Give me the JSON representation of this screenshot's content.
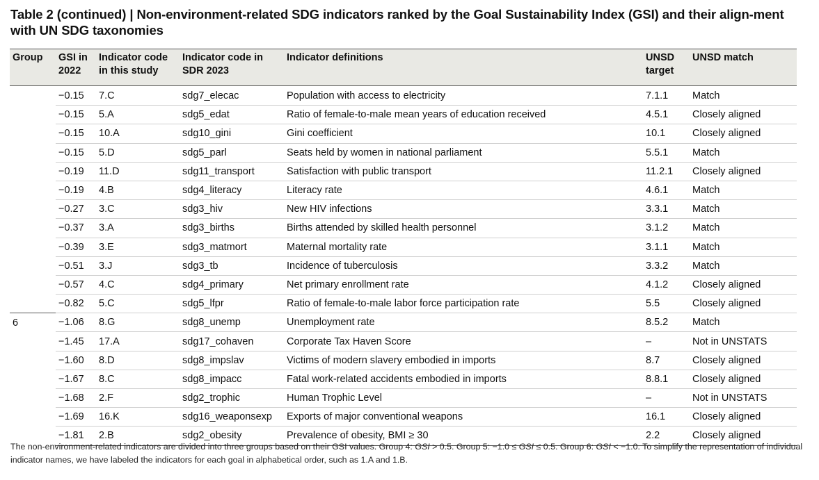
{
  "title": "Table 2 (continued) | Non-environment-related SDG indicators ranked by the Goal Sustainability Index (GSI) and their align-ment with UN SDG taxonomies",
  "headers": {
    "group": "Group",
    "gsi": "GSI in 2022",
    "code_study": "Indicator code in this study",
    "code_sdr": "Indicator code in SDR 2023",
    "definition": "Indicator definitions",
    "unsd_target": "UNSD target",
    "unsd_match": "UNSD match"
  },
  "rows": [
    {
      "group": "",
      "gsi": "−0.15",
      "code": "7.C",
      "sdr": "sdg7_elecac",
      "definition": "Population with access to electricity",
      "target": "7.1.1",
      "match": "Match"
    },
    {
      "group": "",
      "gsi": "−0.15",
      "code": "5.A",
      "sdr": "sdg5_edat",
      "definition": "Ratio of female-to-male mean years of education received",
      "target": "4.5.1",
      "match": "Closely aligned"
    },
    {
      "group": "",
      "gsi": "−0.15",
      "code": "10.A",
      "sdr": "sdg10_gini",
      "definition": "Gini coefficient",
      "target": "10.1",
      "match": "Closely aligned"
    },
    {
      "group": "",
      "gsi": "−0.15",
      "code": "5.D",
      "sdr": "sdg5_parl",
      "definition": "Seats held by women in national parliament",
      "target": "5.5.1",
      "match": "Match"
    },
    {
      "group": "",
      "gsi": "−0.19",
      "code": "11.D",
      "sdr": "sdg11_transport",
      "definition": "Satisfaction with public transport",
      "target": "11.2.1",
      "match": "Closely aligned"
    },
    {
      "group": "",
      "gsi": "−0.19",
      "code": "4.B",
      "sdr": "sdg4_literacy",
      "definition": "Literacy rate",
      "target": "4.6.1",
      "match": "Match"
    },
    {
      "group": "",
      "gsi": "−0.27",
      "code": "3.C",
      "sdr": "sdg3_hiv",
      "definition": "New HIV infections",
      "target": "3.3.1",
      "match": "Match"
    },
    {
      "group": "",
      "gsi": "−0.37",
      "code": "3.A",
      "sdr": "sdg3_births",
      "definition": "Births attended by skilled health personnel",
      "target": "3.1.2",
      "match": "Match"
    },
    {
      "group": "",
      "gsi": "−0.39",
      "code": "3.E",
      "sdr": "sdg3_matmort",
      "definition": "Maternal mortality rate",
      "target": "3.1.1",
      "match": "Match"
    },
    {
      "group": "",
      "gsi": "−0.51",
      "code": "3.J",
      "sdr": "sdg3_tb",
      "definition": "Incidence of tuberculosis",
      "target": "3.3.2",
      "match": "Match"
    },
    {
      "group": "",
      "gsi": "−0.57",
      "code": "4.C",
      "sdr": "sdg4_primary",
      "definition": "Net primary enrollment rate",
      "target": "4.1.2",
      "match": "Closely aligned"
    },
    {
      "group": "",
      "gsi": "−0.82",
      "code": "5.C",
      "sdr": "sdg5_lfpr",
      "definition": "Ratio of female-to-male labor force participation rate",
      "target": "5.5",
      "match": "Closely aligned"
    },
    {
      "group": "6",
      "gsi": "−1.06",
      "code": "8.G",
      "sdr": "sdg8_unemp",
      "definition": "Unemployment rate",
      "target": "8.5.2",
      "match": "Match"
    },
    {
      "group": "",
      "gsi": "−1.45",
      "code": "17.A",
      "sdr": "sdg17_cohaven",
      "definition": "Corporate Tax Haven Score",
      "target": "–",
      "match": "Not in UNSTATS"
    },
    {
      "group": "",
      "gsi": "−1.60",
      "code": "8.D",
      "sdr": "sdg8_impslav",
      "definition": "Victims of modern slavery embodied in imports",
      "target": "8.7",
      "match": "Closely aligned"
    },
    {
      "group": "",
      "gsi": "−1.67",
      "code": "8.C",
      "sdr": "sdg8_impacc",
      "definition": "Fatal work-related accidents embodied in imports",
      "target": "8.8.1",
      "match": "Closely aligned"
    },
    {
      "group": "",
      "gsi": "−1.68",
      "code": "2.F",
      "sdr": "sdg2_trophic",
      "definition": "Human Trophic Level",
      "target": "–",
      "match": "Not in UNSTATS"
    },
    {
      "group": "",
      "gsi": "−1.69",
      "code": "16.K",
      "sdr": "sdg16_weaponsexp",
      "definition": "Exports of major conventional weapons",
      "target": "16.1",
      "match": "Closely aligned"
    },
    {
      "group": "",
      "gsi": "−1.81",
      "code": "2.B",
      "sdr": "sdg2_obesity",
      "definition": "Prevalence of obesity, BMI ≥ 30",
      "target": "2.2",
      "match": "Closely aligned"
    }
  ],
  "footnote": {
    "part1": "The non-environment-related indicators are divided into three groups based on their GSI values. Group 4: ",
    "gsi_a": "GSI",
    "part2": " > 0.5. Group 5: −1.0 ≤ ",
    "gsi_b": "GSI",
    "part3": " ≤ 0.5. Group 6: ",
    "gsi_c": "GSI",
    "part4": " < −1.0. To simplify the representation of individual indicator names, we have labeled the indicators for each goal in alphabetical order, such as 1.A and 1.B."
  }
}
